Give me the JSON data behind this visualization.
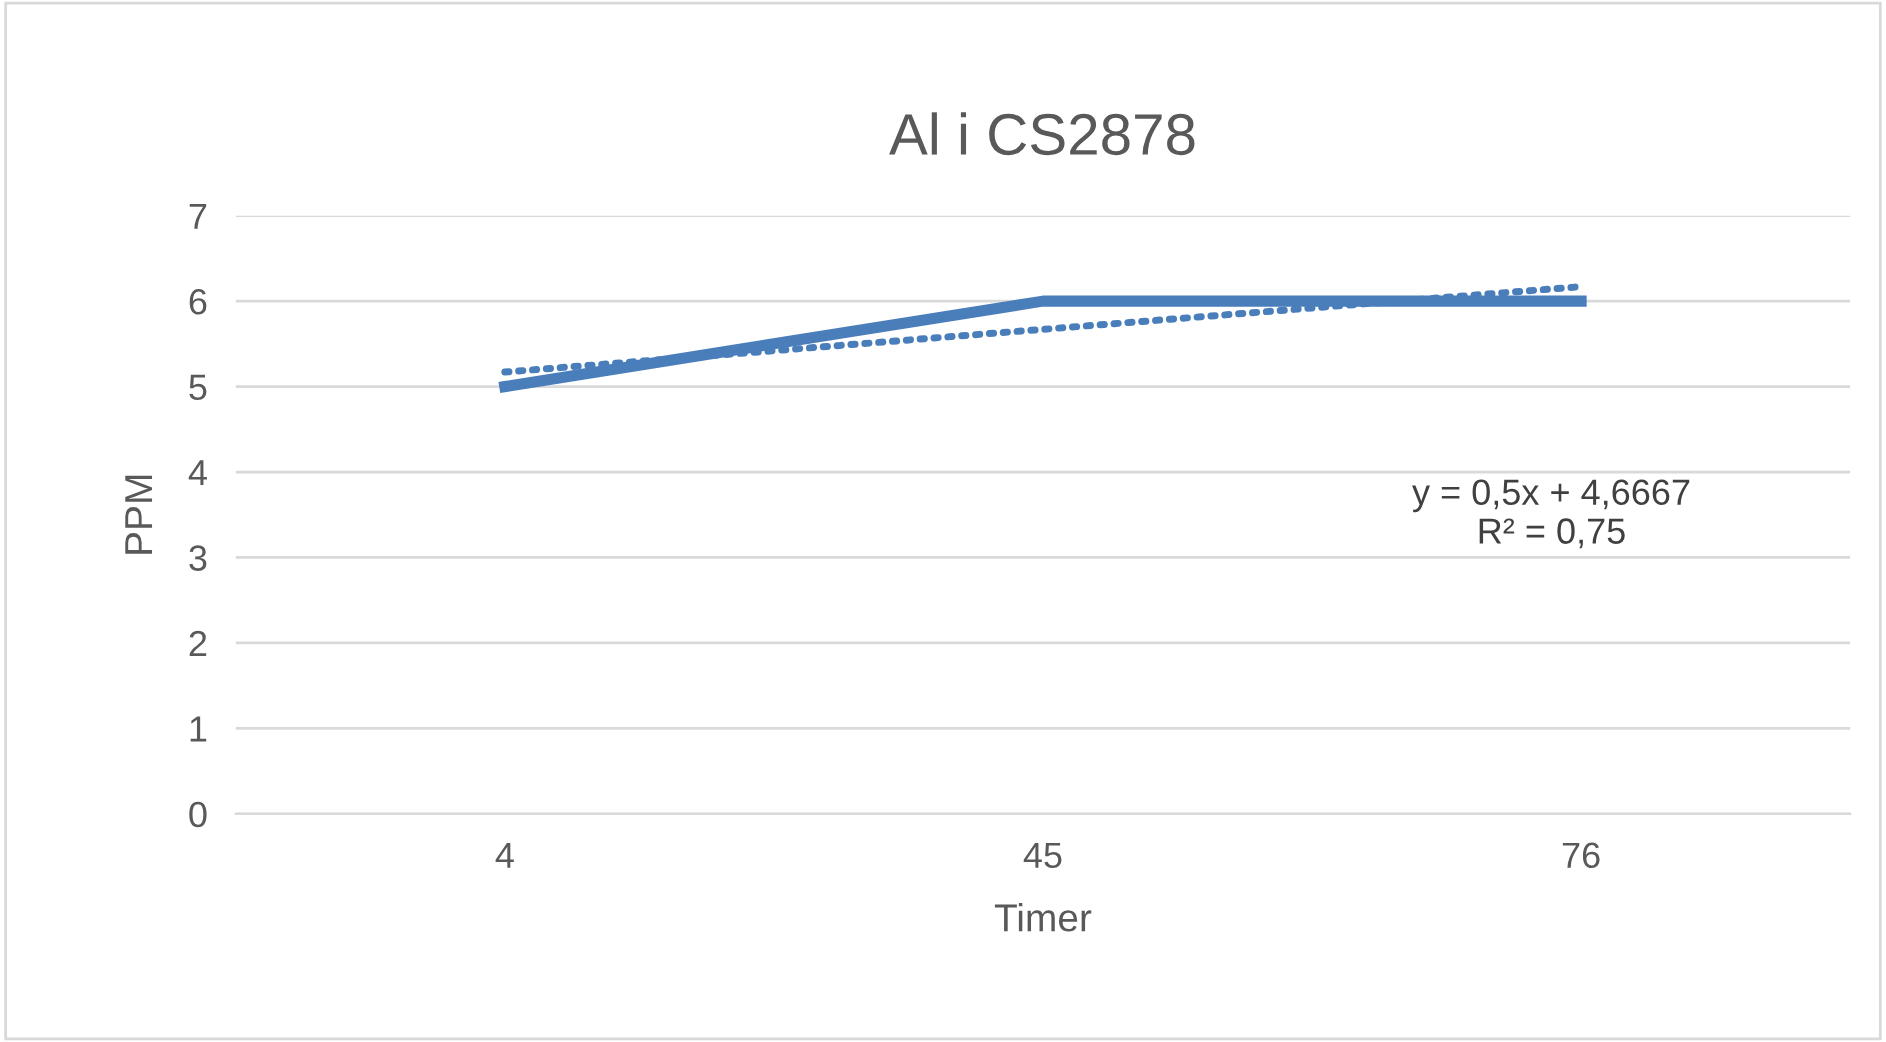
{
  "chart_data": {
    "type": "line",
    "title": "Al i CS2878",
    "xlabel": "Timer",
    "ylabel": "PPM",
    "categories": [
      "4",
      "45",
      "76"
    ],
    "series": [
      {
        "color": "#4a7ebb",
        "values": [
          5,
          6,
          6
        ],
        "line_style": "solid"
      },
      {
        "color": "#4a7ebb",
        "values": [
          5.17,
          5.67,
          6.17
        ],
        "line_style": "dotted"
      }
    ],
    "ylim": [
      0,
      7
    ],
    "yticks": [
      0,
      1,
      2,
      3,
      4,
      5,
      6,
      7
    ],
    "grid": "y",
    "legend": false,
    "annotations": [
      "y = 0,5x + 4,6667\nR² = 0,75"
    ]
  }
}
